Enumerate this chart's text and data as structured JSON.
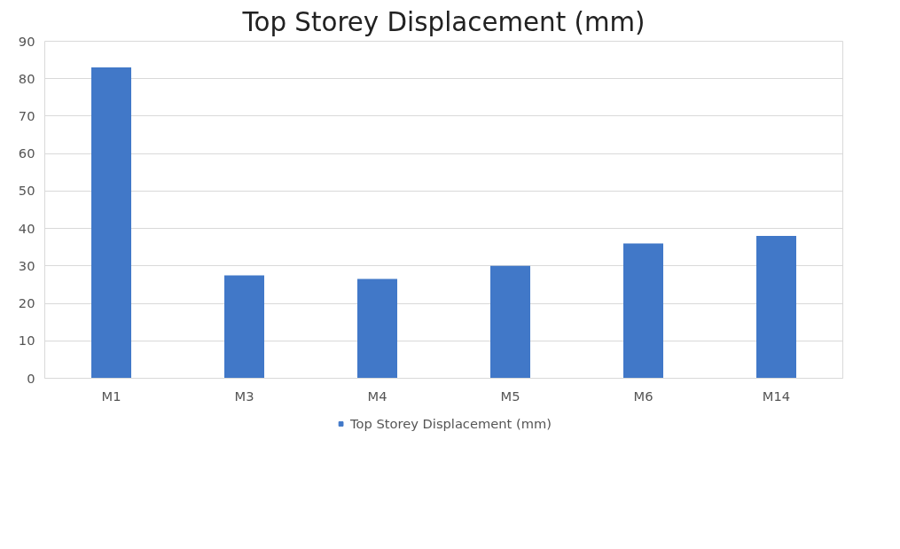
{
  "chart_data": {
    "type": "bar",
    "title": "Top Storey Displacement (mm)",
    "categories": [
      "M1",
      "M3",
      "M4",
      "M5",
      "M6",
      "M14"
    ],
    "series": [
      {
        "name": "Top Storey Displacement (mm)",
        "color": "#4178c8",
        "values": [
          83,
          27.5,
          26.5,
          30,
          36,
          38
        ]
      }
    ],
    "ylim": [
      0,
      90
    ],
    "yticks": [
      0,
      10,
      20,
      30,
      40,
      50,
      60,
      70,
      80,
      90
    ],
    "grid": "y",
    "legend": "bottom"
  }
}
